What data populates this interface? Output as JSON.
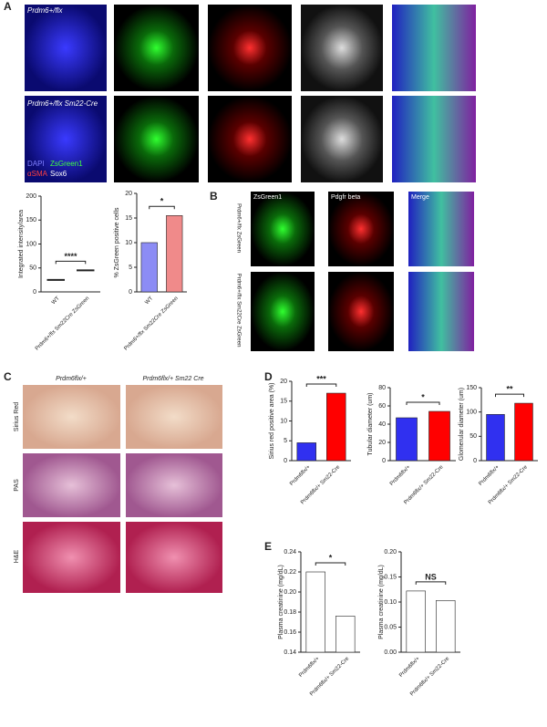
{
  "panel_a": {
    "label": "A",
    "row_labels": [
      "Prdm6+/flx",
      "Prdm6+/flx Sm22-Cre"
    ],
    "legend": [
      "DAPI",
      "ZsGreen1",
      "αSMA",
      "Sox6"
    ]
  },
  "panel_b": {
    "label": "B",
    "column_labels": [
      "ZsGreen1",
      "Pdgfr beta",
      "Merge"
    ],
    "row_labels": [
      "Prdm6+/flx ZsGreen",
      "Prdm6+/flx Sm22Cre ZsGreen"
    ]
  },
  "panel_c": {
    "label": "C",
    "column_labels": [
      "Prdm6flx/+",
      "Prdm6flx/+ Sm22 Cre"
    ],
    "row_labels": [
      "Sirius Red",
      "PAS",
      "H&E"
    ]
  },
  "panel_d": {
    "label": "D"
  },
  "panel_e": {
    "label": "E"
  },
  "charts": [
    {
      "type": "dot",
      "y_label": "Integrated intensity/area",
      "categories": [
        "WT",
        "Prdm6+/flx Sm22Cre ZsGreen"
      ],
      "values": [
        25,
        45
      ],
      "colors": [
        "#222222",
        "#222222"
      ],
      "ylim": [
        0,
        200
      ],
      "yticks": [
        0,
        50,
        100,
        150,
        200
      ],
      "significance": "****"
    },
    {
      "type": "bar",
      "y_label": "% ZsGreen positive cells",
      "categories": [
        "WT",
        "Prdm6+/flx Sm22Cre ZsGreen"
      ],
      "values": [
        10,
        15.5
      ],
      "colors": [
        "#8c8cf5",
        "#f08a8a"
      ],
      "ylim": [
        0,
        20
      ],
      "yticks": [
        0,
        5,
        10,
        15,
        20
      ],
      "significance": "*"
    },
    {
      "type": "bar",
      "y_label": "Sirius red positive area (%)",
      "categories": [
        "Prdm6flx/+",
        "Prdm6flx/+ Sm22-Cre"
      ],
      "values": [
        4.5,
        17
      ],
      "colors": [
        "#3030f0",
        "#ff0000"
      ],
      "ylim": [
        0,
        20
      ],
      "yticks": [
        0,
        5,
        10,
        15,
        20
      ],
      "significance": "***"
    },
    {
      "type": "bar",
      "y_label": "Tubular diameter (um)",
      "categories": [
        "Prdm6flx/+",
        "Prdm6flx/+ Sm22-Cre"
      ],
      "values": [
        47,
        54
      ],
      "colors": [
        "#3030f0",
        "#ff0000"
      ],
      "ylim": [
        0,
        80
      ],
      "yticks": [
        0,
        20,
        40,
        60,
        80
      ],
      "significance": "*"
    },
    {
      "type": "bar",
      "y_label": "Glomerular diameter (um)",
      "categories": [
        "Prdm6flx/+",
        "Prdm6flx/+ Sm22-Cre"
      ],
      "values": [
        95,
        118
      ],
      "colors": [
        "#3030f0",
        "#ff0000"
      ],
      "ylim": [
        0,
        150
      ],
      "yticks": [
        0,
        50,
        100,
        150
      ],
      "significance": "**"
    },
    {
      "type": "bar",
      "y_label": "Plasma creatinine (mg/dL)",
      "categories": [
        "Prdm6flx/+",
        "Prdm6flx/+ Sm22-Cre"
      ],
      "values": [
        0.22,
        0.176
      ],
      "colors": [
        "#ffffff",
        "#ffffff"
      ],
      "ylim": [
        0.14,
        0.24
      ],
      "yticks": [
        0.14,
        0.16,
        0.18,
        {
          "value": 0.2,
          "label": "0.20"
        },
        0.22,
        0.24
      ],
      "significance": "*"
    },
    {
      "type": "bar",
      "y_label": "Plasma creatinine (mg/dL)",
      "categories": [
        "Prdm6flx/+",
        "Prdm6flx/+ Sm22-Cre"
      ],
      "values": [
        0.122,
        0.103
      ],
      "colors": [
        "#ffffff",
        "#ffffff"
      ],
      "ylim": [
        0,
        0.2
      ],
      "yticks": [
        {
          "value": 0,
          "label": "0.00"
        },
        0.05,
        {
          "value": 0.1,
          "label": "0.10"
        },
        0.15,
        {
          "value": 0.2,
          "label": "0.20"
        }
      ],
      "significance": "NS"
    }
  ]
}
